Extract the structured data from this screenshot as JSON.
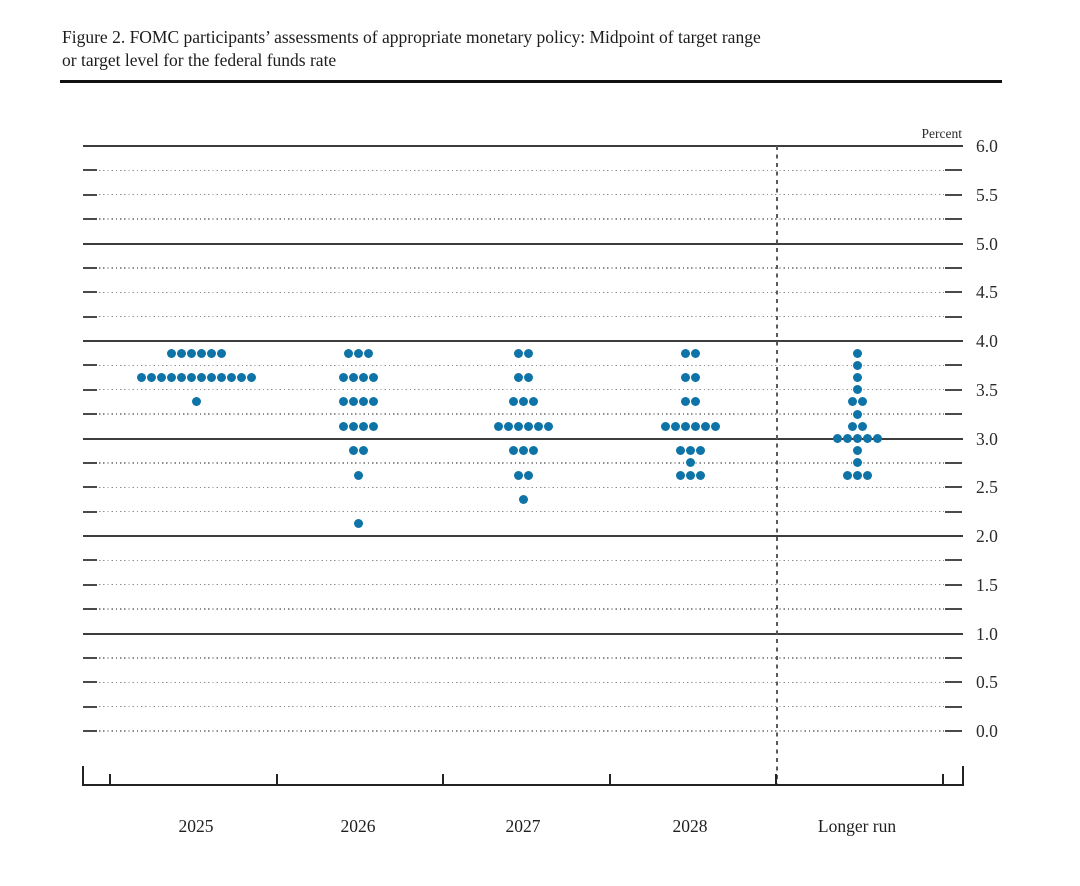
{
  "figure": {
    "title_line1": "Figure 2. FOMC participants’ assessments of appropriate monetary policy: Midpoint of target range",
    "title_line2": "or target level for the federal funds rate"
  },
  "chart_data": {
    "type": "scatter",
    "variant": "fomc-dot-plot",
    "title": "Figure 2. FOMC participants’ assessments of appropriate monetary policy: Midpoint of target range or target level for the federal funds rate",
    "y_axis_title": "Percent",
    "ylim": [
      0.0,
      6.0
    ],
    "y_label_step": 0.5,
    "y_grid_step": 0.25,
    "y_tick_labels": [
      "6.0",
      "5.5",
      "5.0",
      "4.5",
      "4.0",
      "3.5",
      "3.0",
      "2.5",
      "2.0",
      "1.5",
      "1.0",
      "0.5",
      "0.0"
    ],
    "grid": "dotted quarter lines, solid integer lines, dashed divider before Longer run",
    "legend_position": "none",
    "categories": [
      "2025",
      "2026",
      "2027",
      "2028",
      "Longer run"
    ],
    "series": [
      {
        "name": "2025",
        "dots": [
          {
            "rate": 3.875,
            "count": 6
          },
          {
            "rate": 3.625,
            "count": 12
          },
          {
            "rate": 3.375,
            "count": 1
          }
        ]
      },
      {
        "name": "2026",
        "dots": [
          {
            "rate": 3.875,
            "count": 3
          },
          {
            "rate": 3.625,
            "count": 4
          },
          {
            "rate": 3.375,
            "count": 4
          },
          {
            "rate": 3.125,
            "count": 4
          },
          {
            "rate": 2.875,
            "count": 2
          },
          {
            "rate": 2.625,
            "count": 1
          },
          {
            "rate": 2.125,
            "count": 1
          }
        ]
      },
      {
        "name": "2027",
        "dots": [
          {
            "rate": 3.875,
            "count": 2
          },
          {
            "rate": 3.625,
            "count": 2
          },
          {
            "rate": 3.375,
            "count": 3
          },
          {
            "rate": 3.125,
            "count": 6
          },
          {
            "rate": 2.875,
            "count": 3
          },
          {
            "rate": 2.625,
            "count": 2
          },
          {
            "rate": 2.375,
            "count": 1
          }
        ]
      },
      {
        "name": "2028",
        "dots": [
          {
            "rate": 3.875,
            "count": 2
          },
          {
            "rate": 3.625,
            "count": 2
          },
          {
            "rate": 3.375,
            "count": 2
          },
          {
            "rate": 3.125,
            "count": 6
          },
          {
            "rate": 2.875,
            "count": 3
          },
          {
            "rate": 2.75,
            "count": 1
          },
          {
            "rate": 2.625,
            "count": 3
          }
        ]
      },
      {
        "name": "Longer run",
        "dots": [
          {
            "rate": 3.875,
            "count": 1
          },
          {
            "rate": 3.75,
            "count": 1
          },
          {
            "rate": 3.625,
            "count": 1
          },
          {
            "rate": 3.5,
            "count": 1
          },
          {
            "rate": 3.375,
            "count": 2
          },
          {
            "rate": 3.25,
            "count": 1
          },
          {
            "rate": 3.125,
            "count": 2
          },
          {
            "rate": 3.0,
            "count": 5
          },
          {
            "rate": 2.875,
            "count": 1
          },
          {
            "rate": 2.75,
            "count": 1
          },
          {
            "rate": 2.625,
            "count": 3
          }
        ]
      }
    ],
    "dot_color": "#0e74a8"
  }
}
